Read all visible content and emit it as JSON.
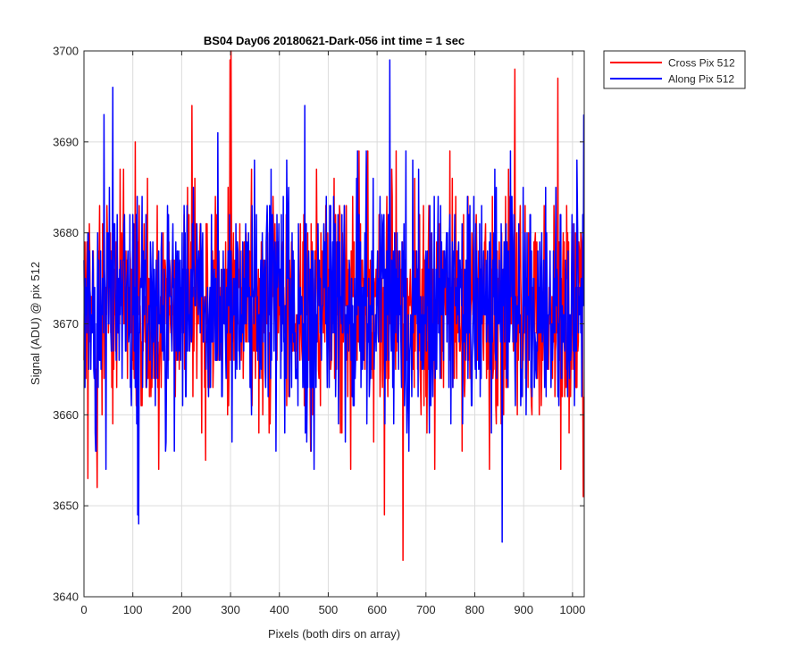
{
  "chart_data": {
    "type": "line",
    "title": "BS04 Day06 20180621-Dark-056 int time = 1 sec",
    "xlabel": "Pixels (both dirs on array)",
    "ylabel": "Signal (ADU) @ pix 512",
    "xlim": [
      0,
      1024
    ],
    "ylim": [
      3640,
      3700
    ],
    "xticks": [
      0,
      100,
      200,
      300,
      400,
      500,
      600,
      700,
      800,
      900,
      1000
    ],
    "yticks": [
      3640,
      3650,
      3660,
      3670,
      3680,
      3690,
      3700
    ],
    "grid": true,
    "legend_position": "outside-top-right",
    "noise": {
      "mean": 3672,
      "range": [
        3644,
        3699
      ],
      "n_points": 1024
    },
    "series": [
      {
        "name": "Cross Pix 512",
        "color": "#ff0000",
        "features": [
          {
            "x": 3,
            "y": 3666
          },
          {
            "x": 8,
            "y": 3653
          },
          {
            "x": 27,
            "y": 3652
          },
          {
            "x": 105,
            "y": 3690
          },
          {
            "x": 221,
            "y": 3694
          },
          {
            "x": 299,
            "y": 3699
          },
          {
            "x": 301,
            "y": 3700
          },
          {
            "x": 615,
            "y": 3649
          },
          {
            "x": 653,
            "y": 3644
          },
          {
            "x": 872,
            "y": 3684
          },
          {
            "x": 882,
            "y": 3698
          },
          {
            "x": 970,
            "y": 3697
          },
          {
            "x": 1022,
            "y": 3651
          }
        ],
        "values": []
      },
      {
        "name": "Along Pix 512",
        "color": "#0000ff",
        "features": [
          {
            "x": 41,
            "y": 3693
          },
          {
            "x": 59,
            "y": 3696
          },
          {
            "x": 110,
            "y": 3649
          },
          {
            "x": 112,
            "y": 3648
          },
          {
            "x": 274,
            "y": 3691
          },
          {
            "x": 452,
            "y": 3694
          },
          {
            "x": 626,
            "y": 3699
          },
          {
            "x": 856,
            "y": 3646
          },
          {
            "x": 1023,
            "y": 3693
          }
        ],
        "values": []
      }
    ]
  }
}
